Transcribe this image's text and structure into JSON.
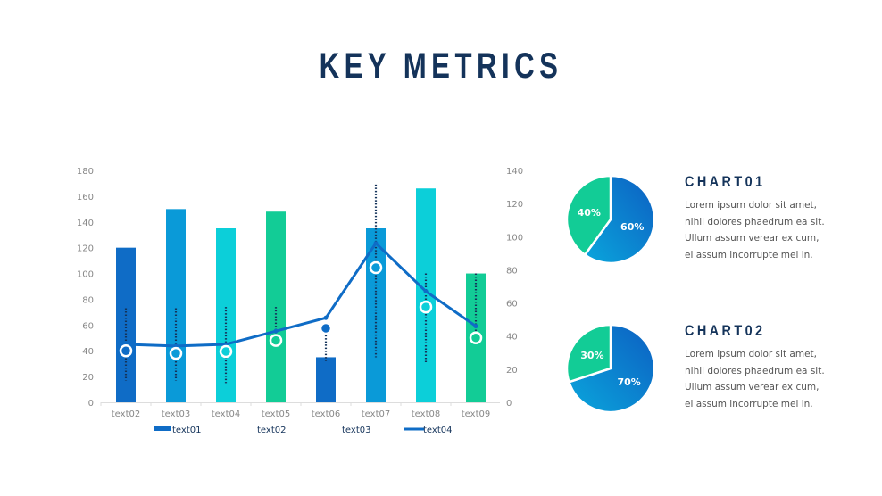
{
  "title": "KEY METRICS",
  "colors": {
    "dark_blue": "#0f6cc6",
    "blue": "#0a9ad8",
    "cyan": "#0ccfd9",
    "green": "#12cc96",
    "navy": "#14335a"
  },
  "chart_data": [
    {
      "type": "bar",
      "categories": [
        "text02",
        "text03",
        "text04",
        "text05",
        "text06",
        "text07",
        "text08",
        "text09"
      ],
      "ylim": [
        0,
        180
      ],
      "y_ticks": [
        "0",
        "20",
        "40",
        "60",
        "80",
        "100",
        "120",
        "140",
        "160",
        "180"
      ],
      "y2lim": [
        0,
        140
      ],
      "y2_ticks": [
        "0",
        "20",
        "40",
        "60",
        "80",
        "100",
        "120",
        "140"
      ],
      "legend": [
        "text01",
        "text02",
        "text03",
        "text04"
      ],
      "legend_position": "bottom",
      "grid": false,
      "series": [
        {
          "name": "text01",
          "type": "bar",
          "axis": "left",
          "values": [
            120,
            150,
            135,
            148,
            35,
            135,
            166,
            100
          ]
        },
        {
          "name": "text02",
          "type": "high-low dotted",
          "axis": "left",
          "high": [
            73,
            73,
            74,
            74,
            57,
            169,
            100,
            100
          ],
          "low": [
            17,
            17,
            15,
            48,
            32,
            35,
            31,
            50
          ]
        },
        {
          "name": "text03",
          "type": "scatter",
          "axis": "left",
          "values": [
            40,
            38,
            39.5,
            48,
            57.5,
            104.5,
            74,
            50
          ]
        },
        {
          "name": "text04",
          "type": "line",
          "axis": "right",
          "values": [
            35,
            34,
            35,
            43,
            51,
            96,
            67,
            46
          ]
        }
      ]
    },
    {
      "type": "pie",
      "title": "CHART01",
      "slices": [
        {
          "label": "60%",
          "value": 60
        },
        {
          "label": "40%",
          "value": 40
        }
      ],
      "description": [
        "Lorem ipsum dolor sit amet,",
        "nihil dolores phaedrum ea sit.",
        "Ullum assum verear ex cum,",
        "ei assum incorrupte mel in."
      ]
    },
    {
      "type": "pie",
      "title": "CHART02",
      "slices": [
        {
          "label": "70%",
          "value": 70
        },
        {
          "label": "30%",
          "value": 30
        }
      ],
      "description": [
        "Lorem ipsum dolor sit amet,",
        "nihil dolores phaedrum ea sit.",
        "Ullum assum verear ex cum,",
        "ei assum incorrupte mel in."
      ]
    }
  ]
}
